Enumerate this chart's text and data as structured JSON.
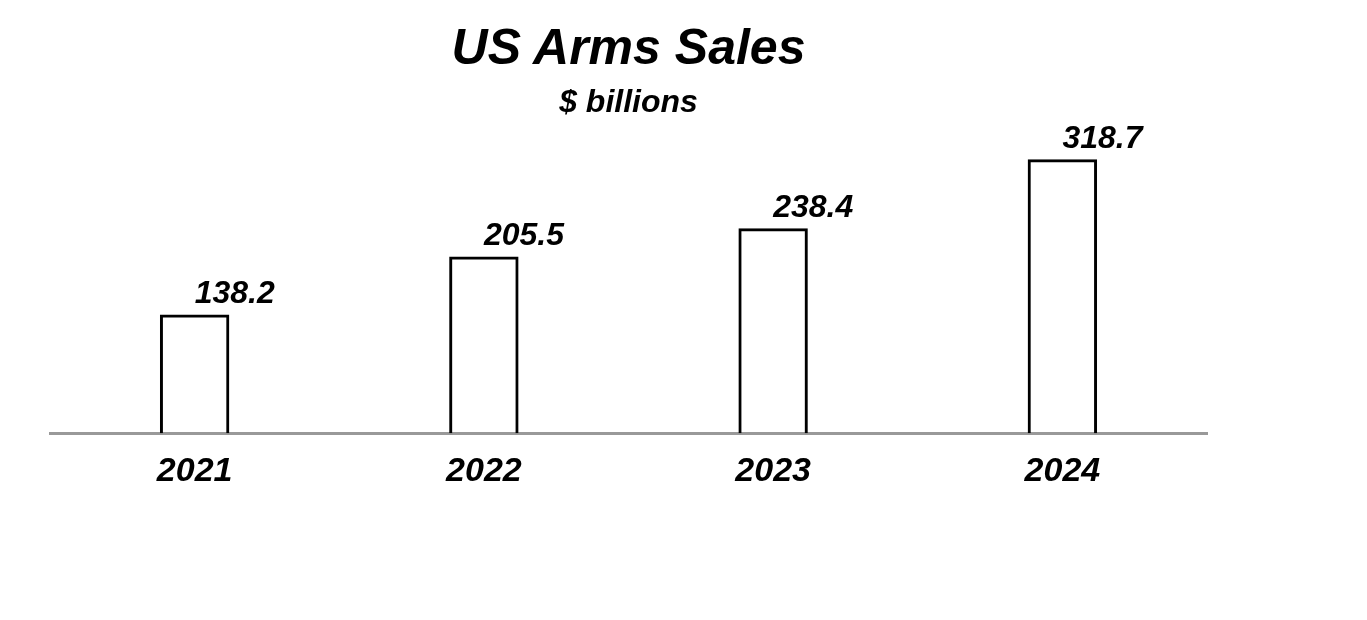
{
  "chart_data": {
    "type": "bar",
    "title": "US Arms Sales",
    "subtitle": "$ billions",
    "categories": [
      "2021",
      "2022",
      "2023",
      "2024"
    ],
    "values": [
      138.2,
      205.5,
      238.4,
      318.7
    ],
    "color": "#000000",
    "data_labels": true,
    "grid": false,
    "legend": false,
    "tick_labels": "x"
  }
}
